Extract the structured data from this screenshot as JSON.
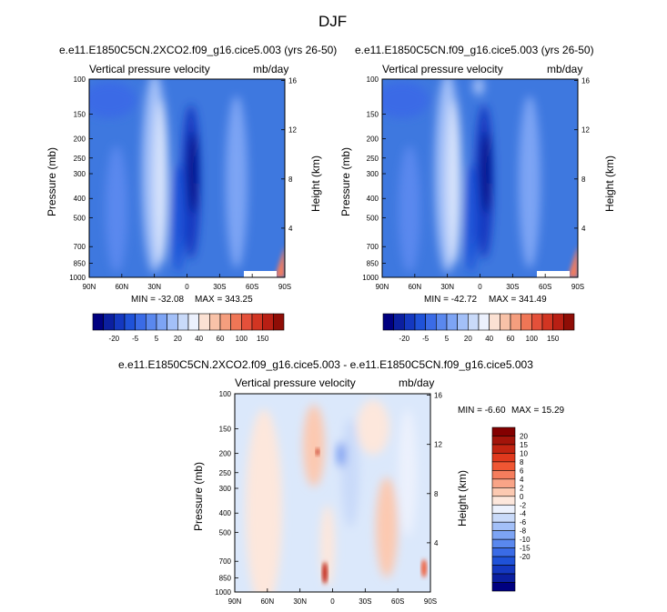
{
  "figure": {
    "season": "DJF"
  },
  "colors": {
    "bg_left": "#3e78df",
    "bg_right": "#3e78df",
    "diff_bg": "#dbe8fb",
    "blue_scale": [
      "#000080",
      "#0b1fa0",
      "#1438c0",
      "#1f52d8",
      "#3a6be6",
      "#5a88ee",
      "#7da4f4",
      "#a3c0f8",
      "#c9daf9",
      "#ecf1fd"
    ],
    "red_scale": [
      "#fde7dc",
      "#fcc9b1",
      "#f9a487",
      "#f57d5d",
      "#ef5633",
      "#e0391d",
      "#c22411",
      "#a3140a",
      "#830000"
    ]
  },
  "chart_data": [
    {
      "type": "heatmap",
      "title": "e.e11.E1850C5CN.2XCO2.f09_g16.cice5.003 (yrs 26-50)",
      "subtitle_left": "Vertical pressure velocity",
      "subtitle_right": "mb/day",
      "ylabel": "Pressure (mb)",
      "ylabel_right": "Height (km)",
      "x_ticks": [
        "90N",
        "60N",
        "30N",
        "0",
        "30S",
        "60S",
        "90S"
      ],
      "y_ticks": [
        "100",
        "150",
        "200",
        "250",
        "300",
        "400",
        "500",
        "700",
        "850",
        "1000"
      ],
      "y_ticks_right": [
        "16",
        "12",
        "8",
        "4"
      ],
      "min_label": "MIN = -32.08",
      "max_label": "MAX = 343.25",
      "colorbar_labels": [
        "-20",
        "-5",
        "5",
        "20",
        "40",
        "60",
        "100",
        "150"
      ],
      "ylim": [
        1000,
        100
      ]
    },
    {
      "type": "heatmap",
      "title": "e.e11.E1850C5CN.f09_g16.cice5.003 (yrs 26-50)",
      "subtitle_left": "Vertical pressure velocity",
      "subtitle_right": "mb/day",
      "ylabel": "Pressure (mb)",
      "ylabel_right": "Height (km)",
      "x_ticks": [
        "90N",
        "60N",
        "30N",
        "0",
        "30S",
        "60S",
        "90S"
      ],
      "y_ticks": [
        "100",
        "150",
        "200",
        "250",
        "300",
        "400",
        "500",
        "700",
        "850",
        "1000"
      ],
      "y_ticks_right": [
        "16",
        "12",
        "8",
        "4"
      ],
      "min_label": "MIN = -42.72",
      "max_label": "MAX = 341.49",
      "colorbar_labels": [
        "-20",
        "-5",
        "5",
        "20",
        "40",
        "60",
        "100",
        "150"
      ],
      "ylim": [
        1000,
        100
      ]
    },
    {
      "type": "heatmap",
      "title": "e.e11.E1850C5CN.2XCO2.f09_g16.cice5.003 - e.e11.E1850C5CN.f09_g16.cice5.003",
      "subtitle_left": "Vertical pressure velocity",
      "subtitle_right": "mb/day",
      "ylabel": "Pressure (mb)",
      "ylabel_right": "Height (km)",
      "x_ticks": [
        "90N",
        "60N",
        "30N",
        "0",
        "30S",
        "60S",
        "90S"
      ],
      "y_ticks": [
        "100",
        "150",
        "200",
        "250",
        "300",
        "400",
        "500",
        "700",
        "850",
        "1000"
      ],
      "y_ticks_right": [
        "16",
        "12",
        "8",
        "4"
      ],
      "min_label": "MIN = -6.60",
      "max_label": "MAX = 15.29",
      "colorbar_labels": [
        "20",
        "15",
        "10",
        "8",
        "6",
        "4",
        "2",
        "0",
        "-2",
        "-4",
        "-6",
        "-8",
        "-10",
        "-15",
        "-20"
      ],
      "ylim": [
        1000,
        100
      ]
    }
  ]
}
